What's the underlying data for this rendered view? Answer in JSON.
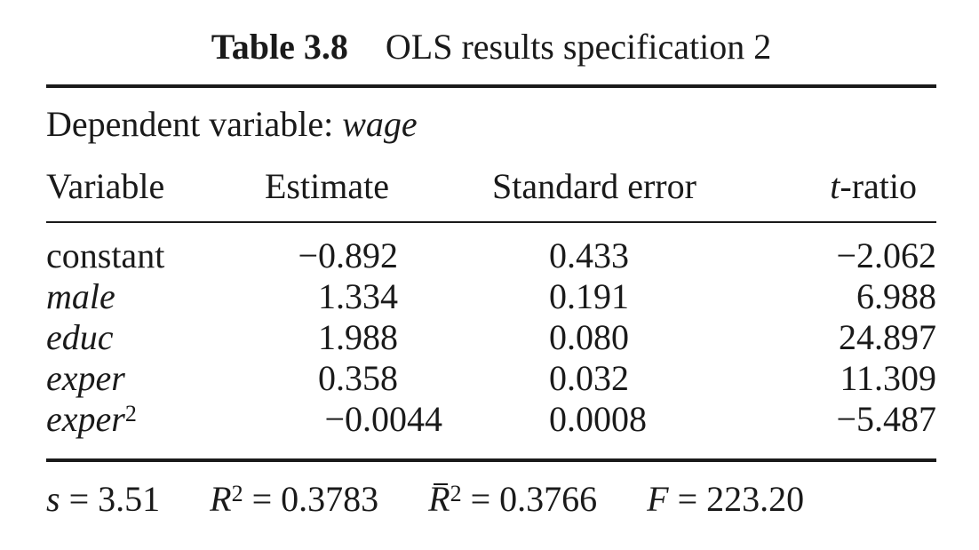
{
  "table": {
    "label": "Table 3.8",
    "title": "OLS results specification 2",
    "dependent_prefix": "Dependent variable:",
    "dependent_var": "wage",
    "headers": {
      "variable": "Variable",
      "estimate": "Estimate",
      "std_error": "Standard error",
      "t_ratio_t": "t",
      "t_ratio_rest": "-ratio"
    },
    "rows": [
      {
        "variable": "constant",
        "italic": false,
        "sup": "",
        "estimate": "−0.892",
        "std_error": "0.433",
        "t_ratio": "−2.062"
      },
      {
        "variable": "male",
        "italic": true,
        "sup": "",
        "estimate": "1.334",
        "std_error": "0.191",
        "t_ratio": "6.988"
      },
      {
        "variable": "educ",
        "italic": true,
        "sup": "",
        "estimate": "1.988",
        "std_error": "0.080",
        "t_ratio": "24.897"
      },
      {
        "variable": "exper",
        "italic": true,
        "sup": "",
        "estimate": "0.358",
        "std_error": "0.032",
        "t_ratio": "11.309"
      },
      {
        "variable": "exper",
        "italic": true,
        "sup": "2",
        "estimate": "−0.0044",
        "std_error": "0.0008",
        "t_ratio": "−5.487"
      }
    ],
    "stats": {
      "s_sym": "s",
      "s_val": " = 3.51",
      "r2_sym": "R",
      "r2_sup": "2",
      "r2_val": " = 0.3783",
      "rbar_sym": "R",
      "rbar_sup": "2",
      "rbar_val": " = 0.3766",
      "f_sym": "F",
      "f_val": " = 223.20"
    }
  }
}
